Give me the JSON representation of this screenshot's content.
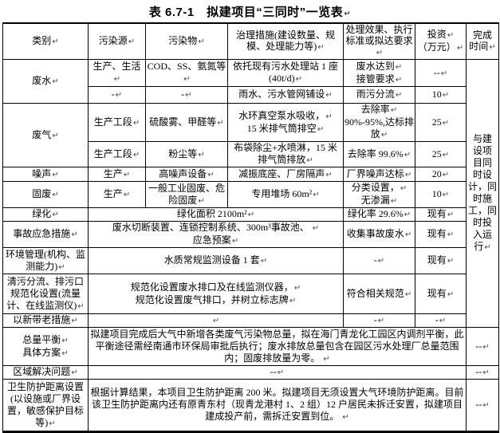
{
  "palette": {
    "background": "#ffffff",
    "text": "#000000",
    "border": "#000000",
    "paragraph_mark_color": "#4a4a4a"
  },
  "title": "表 6.7-1　拟建项目“三同时”一览表↵",
  "columns": {
    "category": "类别↵",
    "source": "污染源↵",
    "pollutants": "污染物↵",
    "treatment": "治理措施(建设数量、规模、处理能力等)↵",
    "effect": "处理效果、执行标准或拟达要求↵",
    "investment": "投资↵\n（万元）↵",
    "completion": "完成\n时间↵"
  },
  "rows": {
    "wastewater": {
      "label": "废水↵",
      "sub1": {
        "source": "生产、生活↵",
        "pollutant": "COD、SS、氨氮等↵",
        "measure": "依托现有污水处理站 1 座\n(40t/d)↵",
        "effect": "废水达到↵\n接管要求↵",
        "investment": "--↵"
      },
      "sub2": {
        "source": "-↵",
        "pollutant": "-↵",
        "measure": "雨水、污水管网铺设↵",
        "effect": "雨污分流↵",
        "investment": "10↵"
      }
    },
    "waste_gas": {
      "label": "废气↵",
      "sub1": {
        "source": "生产工段↵",
        "pollutant": "硫酸雾、甲醛等↵",
        "measure": "水环真空泵水吸收，↵\n15 米排气筒排空↵",
        "effect": "去除率↵\n90%-95%,达标排放↵",
        "investment": "25↵"
      },
      "sub2": {
        "source": "生产工段↵",
        "pollutant": "粉尘等↵",
        "measure": "布袋除尘+水喷淋，15 米\n排气筒排放↵",
        "effect": "去除率 99.6%↵",
        "investment": "25↵"
      }
    },
    "noise": {
      "label": "噪声↵",
      "source": "生产↵",
      "pollutant": "高噪声设备↵",
      "measure": "减振底座、厂房隔声↵",
      "effect": "厂界噪声达标↵",
      "investment": "20↵"
    },
    "solid_waste": {
      "label": "固废↵",
      "source": "生产↵",
      "pollutant": "一般工业固废、危险固废↵",
      "measure": "专用堆场 60m²↵",
      "effect": "分类设置，↵\n无渗漏↵",
      "investment": "10↵"
    },
    "greening": {
      "label": "绿化↵",
      "measure": "绿化面积 2100m²↵",
      "effect": "绿化率 29.6%↵",
      "investment": "现有↵"
    },
    "emergency": {
      "label": "事故应急措施↵",
      "measure": "废水切断装置、连锁控制系统、300m³事故池、 ↵\n应急预案↵",
      "effect": "收集事故废水↵",
      "investment": "现有↵"
    },
    "env_management": {
      "label": "环境管理(机构、监测能力)↵",
      "measure": "水质常规监测设备 1 套↵",
      "effect": "-↵",
      "investment": "现有↵"
    },
    "outlet_standard": {
      "label": "清污分流、排污口规范化设置(流量计、在线监测仪)↵",
      "measure": "规范化设置废水排口及在线监测仪器，↵\n规范化设置废气排口，并树立标志牌↵",
      "effect": "符合相关规范↵",
      "investment": "现有↵"
    },
    "new_with_old": {
      "label": "以新带老措施↵",
      "measure": "↵",
      "effect": "-↵",
      "investment": "-↵"
    },
    "completion_schedule": "与建\n设项\n目同\n时设\n计，同\n时施\n工，同\n时投\n入运\n行↵",
    "total_balance": {
      "label": "总量平衡↵\n具体方案↵",
      "content": "拟建项目完成后大气中新增各类废气污染物总量，拟在海门青龙化工园区内调剂平衡，此平衡途径需经南通市环保局审批后执行；废水排放总量包含在园区污水处理厂总量范围内；固废排放量为零。 ↵",
      "completion": "--↵"
    },
    "regional_issues": {
      "label": "区域解决问题↵",
      "content": "--↵",
      "completion": "--↵"
    },
    "sanitary_distance": {
      "label": "卫生防护距离设置(以设施或厂界设置，敏感保护目标等)↵",
      "content": "根据计算结果，本项目卫生防护距离 200 米。拟建项目无须设置大气环境防护距离。目前该卫生防护距离内还有原青东村（现青龙港村 1、2 组）12 户居民未拆迁安置，拟建项目建成投产前，需拆迁安置到位。 ↵",
      "completion": "--↵"
    }
  }
}
